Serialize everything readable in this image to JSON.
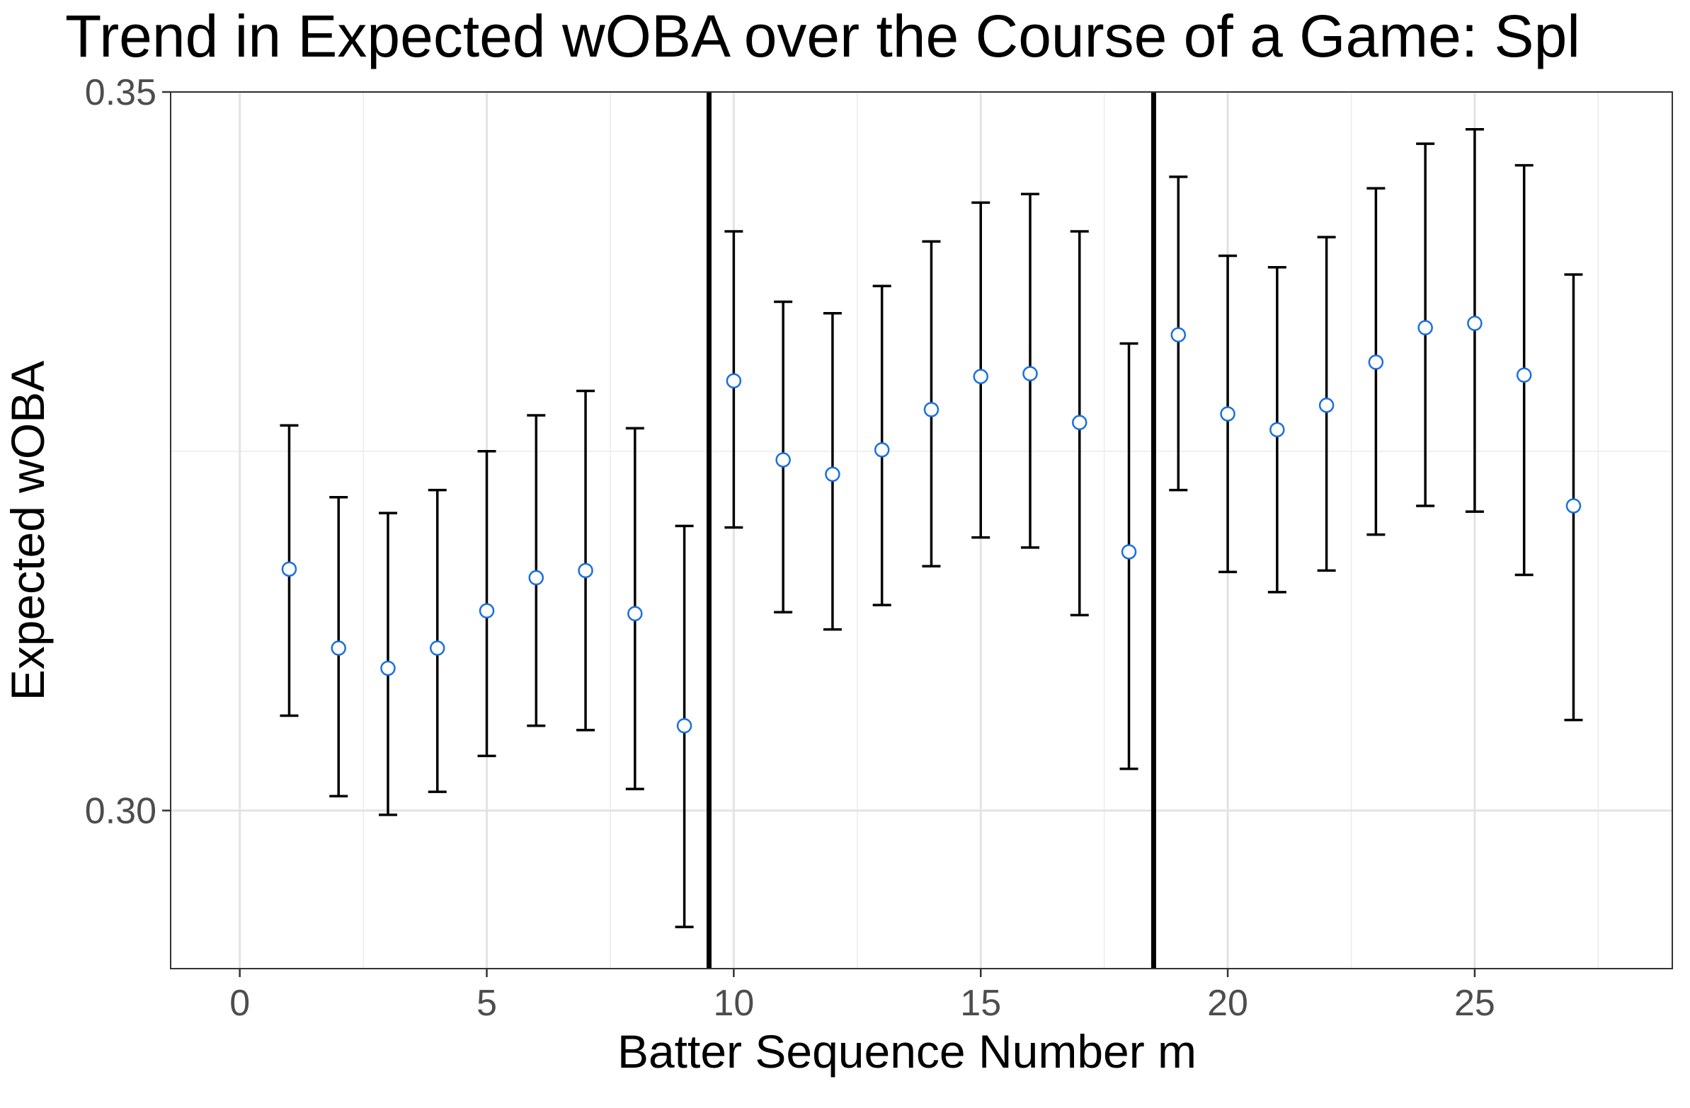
{
  "chart_data": {
    "type": "scatter",
    "title": "Trend in Expected wOBA over the Course of a Game: Spl",
    "xlabel": "Batter Sequence Number m",
    "ylabel": "Expected wOBA",
    "xlim": [
      -1.4,
      29.0
    ],
    "ylim": [
      0.289,
      0.35
    ],
    "x_ticks": [
      0,
      5,
      10,
      15,
      20,
      25
    ],
    "x_tick_labels": [
      "0",
      "5",
      "10",
      "15",
      "20",
      "25"
    ],
    "y_ticks": [
      0.3,
      0.35
    ],
    "y_tick_labels": [
      "0.30",
      "0.35"
    ],
    "x_minor_ticks": [
      2.5,
      7.5,
      12.5,
      17.5,
      22.5,
      27.5
    ],
    "y_minor_ticks": [
      0.325
    ],
    "grid": true,
    "vertical_lines": [
      9.5,
      18.5
    ],
    "series": [
      {
        "x": [
          1,
          2,
          3,
          4,
          5,
          6,
          7,
          8,
          9,
          10,
          11,
          12,
          13,
          14,
          15,
          16,
          17,
          18,
          19,
          20,
          21,
          22,
          23,
          24,
          25,
          26,
          27
        ],
        "y": [
          0.3168,
          0.3113,
          0.3099,
          0.3113,
          0.3139,
          0.3162,
          0.3167,
          0.3137,
          0.3059,
          0.3299,
          0.3244,
          0.3234,
          0.3251,
          0.3279,
          0.3302,
          0.3304,
          0.327,
          0.318,
          0.3331,
          0.3276,
          0.3265,
          0.3282,
          0.3312,
          0.3336,
          0.3339,
          0.3303,
          0.3212
        ],
        "lower": [
          0.3066,
          0.301,
          0.2997,
          0.3013,
          0.3038,
          0.3059,
          0.3056,
          0.3015,
          0.2919,
          0.3197,
          0.3138,
          0.3126,
          0.3143,
          0.317,
          0.319,
          0.3183,
          0.3136,
          0.3029,
          0.3223,
          0.3166,
          0.3152,
          0.3167,
          0.3192,
          0.3212,
          0.3208,
          0.3164,
          0.3063
        ],
        "upper": [
          0.3268,
          0.3218,
          0.3207,
          0.3223,
          0.325,
          0.3275,
          0.3292,
          0.3266,
          0.3198,
          0.3403,
          0.3354,
          0.3346,
          0.3365,
          0.3396,
          0.3423,
          0.3429,
          0.3403,
          0.3325,
          0.3441,
          0.3386,
          0.3378,
          0.3399,
          0.3433,
          0.3464,
          0.3474,
          0.3449,
          0.3373
        ]
      }
    ],
    "point_color": "#ffffff",
    "point_outline": "#1a6fdf",
    "errorbar_color": "#000000"
  }
}
